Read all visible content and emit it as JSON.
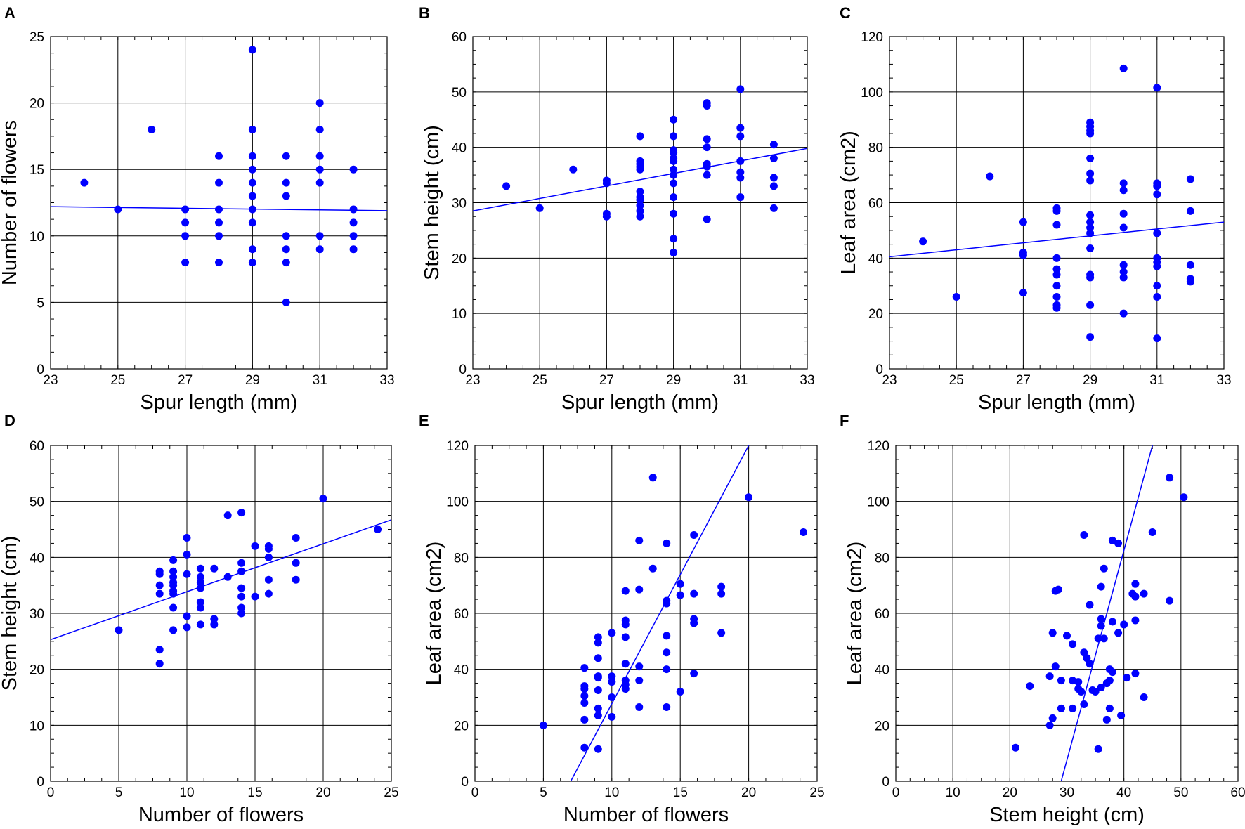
{
  "figure": {
    "colors": {
      "point": "#0000ff",
      "fit_line": "#0000ff",
      "grid": "#000000"
    }
  },
  "chart_data": [
    {
      "panel": "A",
      "type": "scatter",
      "xlabel": "Spur length (mm)",
      "ylabel": "Number of flowers",
      "xlim": [
        23,
        33
      ],
      "ylim": [
        0,
        25
      ],
      "xticks": [
        23,
        25,
        27,
        29,
        31,
        33
      ],
      "yticks": [
        0,
        5,
        10,
        15,
        20,
        25
      ],
      "grid": true,
      "fit_line": [
        [
          23,
          12.2
        ],
        [
          33,
          11.9
        ]
      ],
      "points": [
        [
          24,
          14
        ],
        [
          25,
          12
        ],
        [
          26,
          18
        ],
        [
          27,
          12
        ],
        [
          27,
          11
        ],
        [
          27,
          10
        ],
        [
          27,
          8
        ],
        [
          28,
          16
        ],
        [
          28,
          14
        ],
        [
          28,
          12
        ],
        [
          28,
          11
        ],
        [
          28,
          10
        ],
        [
          28,
          8
        ],
        [
          29,
          24
        ],
        [
          29,
          18
        ],
        [
          29,
          16
        ],
        [
          29,
          15
        ],
        [
          29,
          14
        ],
        [
          29,
          13
        ],
        [
          29,
          12
        ],
        [
          29,
          11
        ],
        [
          29,
          9
        ],
        [
          29,
          8
        ],
        [
          30,
          16
        ],
        [
          30,
          14
        ],
        [
          30,
          13
        ],
        [
          30,
          10
        ],
        [
          30,
          9
        ],
        [
          30,
          8
        ],
        [
          30,
          5
        ],
        [
          31,
          20
        ],
        [
          31,
          18
        ],
        [
          31,
          16
        ],
        [
          31,
          15
        ],
        [
          31,
          14
        ],
        [
          31,
          10
        ],
        [
          31,
          9
        ],
        [
          32,
          15
        ],
        [
          32,
          12
        ],
        [
          32,
          11
        ],
        [
          32,
          10
        ],
        [
          32,
          9
        ]
      ]
    },
    {
      "panel": "B",
      "type": "scatter",
      "xlabel": "Spur length (mm)",
      "ylabel": "Stem height (cm)",
      "xlim": [
        23,
        33
      ],
      "ylim": [
        0,
        60
      ],
      "xticks": [
        23,
        25,
        27,
        29,
        31,
        33
      ],
      "yticks": [
        0,
        10,
        20,
        30,
        40,
        50,
        60
      ],
      "grid": true,
      "fit_line": [
        [
          23,
          28.5
        ],
        [
          33,
          39.8
        ]
      ],
      "points": [
        [
          24,
          33
        ],
        [
          25,
          29
        ],
        [
          26,
          36
        ],
        [
          27,
          34
        ],
        [
          27,
          33.5
        ],
        [
          27,
          28
        ],
        [
          27,
          27.5
        ],
        [
          28,
          42
        ],
        [
          28,
          37.5
        ],
        [
          28,
          37
        ],
        [
          28,
          36.5
        ],
        [
          28,
          36
        ],
        [
          28,
          32
        ],
        [
          28,
          31
        ],
        [
          28,
          30.5
        ],
        [
          28,
          29.5
        ],
        [
          28,
          28.5
        ],
        [
          28,
          27.5
        ],
        [
          29,
          45
        ],
        [
          29,
          42
        ],
        [
          29,
          39.5
        ],
        [
          29,
          39
        ],
        [
          29,
          38
        ],
        [
          29,
          37.5
        ],
        [
          29,
          36
        ],
        [
          29,
          35
        ],
        [
          29,
          33.5
        ],
        [
          29,
          31
        ],
        [
          29,
          28
        ],
        [
          29,
          23.5
        ],
        [
          29,
          21
        ],
        [
          30,
          48
        ],
        [
          30,
          47.5
        ],
        [
          30,
          41.5
        ],
        [
          30,
          40
        ],
        [
          30,
          37
        ],
        [
          30,
          36.5
        ],
        [
          30,
          35
        ],
        [
          30,
          27
        ],
        [
          31,
          50.5
        ],
        [
          31,
          43.5
        ],
        [
          31,
          42
        ],
        [
          31,
          37.5
        ],
        [
          31,
          35.5
        ],
        [
          31,
          34.5
        ],
        [
          31,
          31
        ],
        [
          32,
          40.5
        ],
        [
          32,
          38
        ],
        [
          32,
          34.5
        ],
        [
          32,
          33
        ],
        [
          32,
          29
        ]
      ]
    },
    {
      "panel": "C",
      "type": "scatter",
      "xlabel": "Spur length (mm)",
      "ylabel": "Leaf area (cm2)",
      "xlim": [
        23,
        33
      ],
      "ylim": [
        0,
        120
      ],
      "xticks": [
        23,
        25,
        27,
        29,
        31,
        33
      ],
      "yticks": [
        0,
        20,
        40,
        60,
        80,
        100,
        120
      ],
      "grid": true,
      "fit_line": [
        [
          23,
          40.5
        ],
        [
          33,
          53
        ]
      ],
      "points": [
        [
          24,
          46
        ],
        [
          25,
          26
        ],
        [
          26,
          69.5
        ],
        [
          27,
          53
        ],
        [
          27,
          42
        ],
        [
          27,
          41
        ],
        [
          27,
          27.5
        ],
        [
          28,
          58
        ],
        [
          28,
          57
        ],
        [
          28,
          52
        ],
        [
          28,
          40
        ],
        [
          28,
          36
        ],
        [
          28,
          34
        ],
        [
          28,
          30
        ],
        [
          28,
          26
        ],
        [
          28,
          23
        ],
        [
          28,
          22
        ],
        [
          29,
          89
        ],
        [
          29,
          87.5
        ],
        [
          29,
          86
        ],
        [
          29,
          85
        ],
        [
          29,
          76
        ],
        [
          29,
          70.5
        ],
        [
          29,
          68
        ],
        [
          29,
          55.5
        ],
        [
          29,
          53
        ],
        [
          29,
          51
        ],
        [
          29,
          49
        ],
        [
          29,
          43.5
        ],
        [
          29,
          34
        ],
        [
          29,
          33
        ],
        [
          29,
          23
        ],
        [
          29,
          11.5
        ],
        [
          30,
          108.5
        ],
        [
          30,
          67
        ],
        [
          30,
          64.5
        ],
        [
          30,
          56
        ],
        [
          30,
          51
        ],
        [
          30,
          37.5
        ],
        [
          30,
          35
        ],
        [
          30,
          33
        ],
        [
          30,
          20
        ],
        [
          31,
          101.5
        ],
        [
          31,
          67
        ],
        [
          31,
          66
        ],
        [
          31,
          63
        ],
        [
          31,
          49
        ],
        [
          31,
          40
        ],
        [
          31,
          38.5
        ],
        [
          31,
          37
        ],
        [
          31,
          30
        ],
        [
          31,
          26
        ],
        [
          31,
          11
        ],
        [
          32,
          68.5
        ],
        [
          32,
          57
        ],
        [
          32,
          37.5
        ],
        [
          32,
          32.5
        ],
        [
          32,
          31.5
        ]
      ]
    },
    {
      "panel": "D",
      "type": "scatter",
      "xlabel": "Number of flowers",
      "ylabel": "Stem height (cm)",
      "xlim": [
        0,
        25
      ],
      "ylim": [
        0,
        60
      ],
      "xticks": [
        0,
        5,
        10,
        15,
        20,
        25
      ],
      "yticks": [
        0,
        10,
        20,
        30,
        40,
        50,
        60
      ],
      "grid": true,
      "fit_line": [
        [
          0,
          25.3
        ],
        [
          25,
          46.7
        ]
      ],
      "points": [
        [
          5,
          27
        ],
        [
          8,
          37.5
        ],
        [
          8,
          37
        ],
        [
          8,
          35
        ],
        [
          8,
          33.5
        ],
        [
          8,
          23.5
        ],
        [
          8,
          21
        ],
        [
          9,
          39.5
        ],
        [
          9,
          37.5
        ],
        [
          9,
          36.5
        ],
        [
          9,
          35.5
        ],
        [
          9,
          35
        ],
        [
          9,
          34
        ],
        [
          9,
          33.5
        ],
        [
          9,
          31
        ],
        [
          9,
          27
        ],
        [
          10,
          43.5
        ],
        [
          10,
          40.5
        ],
        [
          10,
          37
        ],
        [
          10,
          29.5
        ],
        [
          10,
          27.5
        ],
        [
          11,
          38
        ],
        [
          11,
          36.5
        ],
        [
          11,
          35.5
        ],
        [
          11,
          34.5
        ],
        [
          11,
          32
        ],
        [
          11,
          31
        ],
        [
          11,
          28
        ],
        [
          12,
          38
        ],
        [
          12,
          29
        ],
        [
          12,
          28
        ],
        [
          13,
          47.5
        ],
        [
          13,
          36.5
        ],
        [
          14,
          48
        ],
        [
          14,
          39
        ],
        [
          14,
          37.5
        ],
        [
          14,
          34.5
        ],
        [
          14,
          33
        ],
        [
          14,
          31
        ],
        [
          14,
          30
        ],
        [
          15,
          42
        ],
        [
          15,
          33
        ],
        [
          16,
          42
        ],
        [
          16,
          41.5
        ],
        [
          16,
          40
        ],
        [
          16,
          36
        ],
        [
          16,
          33.5
        ],
        [
          18,
          43.5
        ],
        [
          18,
          39
        ],
        [
          18,
          36
        ],
        [
          20,
          50.5
        ],
        [
          24,
          45
        ]
      ]
    },
    {
      "panel": "E",
      "type": "scatter",
      "xlabel": "Number of flowers",
      "ylabel": "Leaf area (cm2)",
      "xlim": [
        0,
        25
      ],
      "ylim": [
        0,
        120
      ],
      "xticks": [
        0,
        5,
        10,
        15,
        20,
        25
      ],
      "yticks": [
        0,
        20,
        40,
        60,
        80,
        100,
        120
      ],
      "grid": true,
      "fit_line": [
        [
          7,
          0
        ],
        [
          20,
          120
        ]
      ],
      "points": [
        [
          5,
          20
        ],
        [
          8,
          40.5
        ],
        [
          8,
          34
        ],
        [
          8,
          33
        ],
        [
          8,
          30.5
        ],
        [
          8,
          28
        ],
        [
          8,
          22
        ],
        [
          8,
          12
        ],
        [
          9,
          51.5
        ],
        [
          9,
          49.5
        ],
        [
          9,
          44
        ],
        [
          9,
          37.5
        ],
        [
          9,
          37
        ],
        [
          9,
          32.5
        ],
        [
          9,
          26
        ],
        [
          9,
          23.5
        ],
        [
          9,
          11.5
        ],
        [
          10,
          53
        ],
        [
          10,
          37.5
        ],
        [
          10,
          35.5
        ],
        [
          10,
          30
        ],
        [
          10,
          23
        ],
        [
          11,
          68
        ],
        [
          11,
          57.5
        ],
        [
          11,
          56
        ],
        [
          11,
          51.5
        ],
        [
          11,
          42
        ],
        [
          11,
          36
        ],
        [
          11,
          34.5
        ],
        [
          11,
          33
        ],
        [
          12,
          86
        ],
        [
          12,
          68.5
        ],
        [
          12,
          41
        ],
        [
          12,
          36
        ],
        [
          12,
          26.5
        ],
        [
          13,
          108.5
        ],
        [
          13,
          76
        ],
        [
          14,
          85
        ],
        [
          14,
          64.5
        ],
        [
          14,
          63.5
        ],
        [
          14,
          52
        ],
        [
          14,
          46
        ],
        [
          14,
          40
        ],
        [
          14,
          26.5
        ],
        [
          15,
          70.5
        ],
        [
          15,
          66.5
        ],
        [
          15,
          32
        ],
        [
          16,
          88
        ],
        [
          16,
          67
        ],
        [
          16,
          58
        ],
        [
          16,
          56.5
        ],
        [
          16,
          38.5
        ],
        [
          18,
          69.5
        ],
        [
          18,
          67
        ],
        [
          18,
          53
        ],
        [
          20,
          101.5
        ],
        [
          24,
          89
        ]
      ]
    },
    {
      "panel": "F",
      "type": "scatter",
      "xlabel": "Stem height (cm)",
      "ylabel": "Leaf area (cm2)",
      "xlim": [
        0,
        60
      ],
      "ylim": [
        0,
        120
      ],
      "xticks": [
        0,
        10,
        20,
        30,
        40,
        50,
        60
      ],
      "yticks": [
        0,
        20,
        40,
        60,
        80,
        100,
        120
      ],
      "grid": true,
      "fit_line": [
        [
          29,
          0
        ],
        [
          45,
          120
        ]
      ],
      "points": [
        [
          21,
          12
        ],
        [
          23.5,
          34
        ],
        [
          27,
          37.5
        ],
        [
          27,
          20
        ],
        [
          27.5,
          22.5
        ],
        [
          27.5,
          53
        ],
        [
          28,
          68
        ],
        [
          28,
          41
        ],
        [
          28.5,
          68.5
        ],
        [
          29,
          36
        ],
        [
          29,
          26
        ],
        [
          30,
          52
        ],
        [
          31,
          49
        ],
        [
          31,
          36
        ],
        [
          31,
          26
        ],
        [
          32,
          35.5
        ],
        [
          32,
          33
        ],
        [
          32.5,
          32
        ],
        [
          33,
          46
        ],
        [
          33,
          88
        ],
        [
          33,
          27.5
        ],
        [
          33.5,
          44
        ],
        [
          34,
          42
        ],
        [
          34,
          63
        ],
        [
          34.5,
          32.5
        ],
        [
          35,
          32
        ],
        [
          35.5,
          51
        ],
        [
          35.5,
          11.5
        ],
        [
          36,
          58
        ],
        [
          36,
          69.5
        ],
        [
          36,
          55.5
        ],
        [
          36,
          33.5
        ],
        [
          36.5,
          76
        ],
        [
          36.5,
          51
        ],
        [
          37,
          35
        ],
        [
          37,
          22
        ],
        [
          37.5,
          36
        ],
        [
          37.5,
          40
        ],
        [
          37.5,
          26
        ],
        [
          38,
          86
        ],
        [
          38,
          57
        ],
        [
          38,
          39
        ],
        [
          39,
          85
        ],
        [
          39,
          53
        ],
        [
          39.5,
          23.5
        ],
        [
          40,
          56
        ],
        [
          40.5,
          37
        ],
        [
          41.5,
          67
        ],
        [
          42,
          66
        ],
        [
          42,
          70.5
        ],
        [
          42,
          57.5
        ],
        [
          42,
          38.5
        ],
        [
          43.5,
          67
        ],
        [
          43.5,
          30
        ],
        [
          45,
          89
        ],
        [
          48,
          108.5
        ],
        [
          48,
          64.5
        ],
        [
          50.5,
          101.5
        ]
      ]
    }
  ]
}
